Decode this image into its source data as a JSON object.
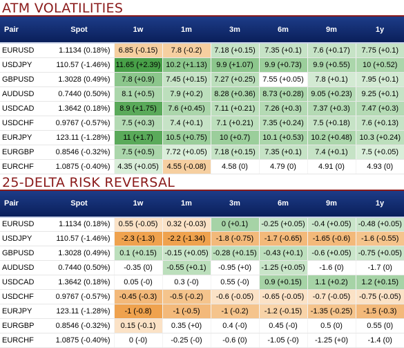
{
  "columns": [
    "Pair",
    "Spot",
    "1w",
    "1m",
    "3m",
    "6m",
    "9m",
    "1y"
  ],
  "sections": [
    {
      "title": "ATM VOLATILITIES",
      "rows": [
        {
          "pair": "EURUSD",
          "spot": "1.1134 (0.18%)",
          "cells": [
            {
              "text": "6.85 (-0.15)",
              "color": "#f6cfa0"
            },
            {
              "text": "7.8 (-0.2)",
              "color": "#f6cfa0"
            },
            {
              "text": "7.18 (+0.15)",
              "color": "#c6e3c6"
            },
            {
              "text": "7.35 (+0.1)",
              "color": "#c6e3c6"
            },
            {
              "text": "7.6 (+0.17)",
              "color": "#c6e3c6"
            },
            {
              "text": "7.75 (+0.1)",
              "color": "#c6e3c6"
            }
          ]
        },
        {
          "pair": "USDJPY",
          "spot": "110.57 (-1.46%)",
          "cells": [
            {
              "text": "11.65 (+2.39)",
              "color": "#48a048"
            },
            {
              "text": "10.2 (+1.13)",
              "color": "#8cc68c"
            },
            {
              "text": "9.9 (+1.07)",
              "color": "#8cc68c"
            },
            {
              "text": "9.9 (+0.73)",
              "color": "#9bce9b"
            },
            {
              "text": "9.9 (+0.55)",
              "color": "#abd6ab"
            },
            {
              "text": "10 (+0.52)",
              "color": "#abd6ab"
            }
          ]
        },
        {
          "pair": "GBPUSD",
          "spot": "1.3028 (0.49%)",
          "cells": [
            {
              "text": "7.8 (+0.9)",
              "color": "#8cc68c"
            },
            {
              "text": "7.45 (+0.15)",
              "color": "#c6e3c6"
            },
            {
              "text": "7.27 (+0.25)",
              "color": "#bcdfbc"
            },
            {
              "text": "7.55 (+0.05)",
              "color": "#ffffff"
            },
            {
              "text": "7.8 (+0.1)",
              "color": "#d3ead3"
            },
            {
              "text": "7.95 (+0.1)",
              "color": "#d3ead3"
            }
          ]
        },
        {
          "pair": "AUDUSD",
          "spot": "0.7440 (0.50%)",
          "cells": [
            {
              "text": "8.1 (+0.5)",
              "color": "#abd6ab"
            },
            {
              "text": "7.9 (+0.2)",
              "color": "#bcdfbc"
            },
            {
              "text": "8.28 (+0.36)",
              "color": "#abd6ab"
            },
            {
              "text": "8.73 (+0.28)",
              "color": "#abd6ab"
            },
            {
              "text": "9.05 (+0.23)",
              "color": "#b4dab4"
            },
            {
              "text": "9.25 (+0.1)",
              "color": "#c6e3c6"
            }
          ]
        },
        {
          "pair": "USDCAD",
          "spot": "1.3642 (0.18%)",
          "cells": [
            {
              "text": "8.9 (+1.75)",
              "color": "#5aaa5a"
            },
            {
              "text": "7.6 (+0.45)",
              "color": "#abd6ab"
            },
            {
              "text": "7.11 (+0.21)",
              "color": "#bcdfbc"
            },
            {
              "text": "7.26 (+0.3)",
              "color": "#b4dab4"
            },
            {
              "text": "7.37 (+0.3)",
              "color": "#b4dab4"
            },
            {
              "text": "7.47 (+0.3)",
              "color": "#b4dab4"
            }
          ]
        },
        {
          "pair": "USDCHF",
          "spot": "0.9767 (-0.57%)",
          "cells": [
            {
              "text": "7.5 (+0.3)",
              "color": "#b4dab4"
            },
            {
              "text": "7.4 (+0.1)",
              "color": "#c6e3c6"
            },
            {
              "text": "7.1 (+0.21)",
              "color": "#bcdfbc"
            },
            {
              "text": "7.35 (+0.24)",
              "color": "#bcdfbc"
            },
            {
              "text": "7.5 (+0.18)",
              "color": "#c6e3c6"
            },
            {
              "text": "7.6 (+0.13)",
              "color": "#c6e3c6"
            }
          ]
        },
        {
          "pair": "EURJPY",
          "spot": "123.11 (-1.28%)",
          "cells": [
            {
              "text": "11 (+1.7)",
              "color": "#5aaa5a"
            },
            {
              "text": "10.5 (+0.75)",
              "color": "#9bce9b"
            },
            {
              "text": "10 (+0.7)",
              "color": "#9bce9b"
            },
            {
              "text": "10.1 (+0.53)",
              "color": "#abd6ab"
            },
            {
              "text": "10.2 (+0.48)",
              "color": "#abd6ab"
            },
            {
              "text": "10.3 (+0.24)",
              "color": "#bcdfbc"
            }
          ]
        },
        {
          "pair": "EURGBP",
          "spot": "0.8546 (-0.32%)",
          "cells": [
            {
              "text": "7.5 (+0.5)",
              "color": "#abd6ab"
            },
            {
              "text": "7.72 (+0.05)",
              "color": "#d9eed9"
            },
            {
              "text": "7.18 (+0.15)",
              "color": "#c6e3c6"
            },
            {
              "text": "7.35 (+0.1)",
              "color": "#c6e3c6"
            },
            {
              "text": "7.4 (+0.1)",
              "color": "#c6e3c6"
            },
            {
              "text": "7.5 (+0.05)",
              "color": "#d9eed9"
            }
          ]
        },
        {
          "pair": "EURCHF",
          "spot": "1.0875 (-0.40%)",
          "cells": [
            {
              "text": "4.35 (+0.05)",
              "color": "#d9eed9"
            },
            {
              "text": "4.55 (-0.08)",
              "color": "#f6cfa0"
            },
            {
              "text": "4.58 (0)",
              "color": "#ffffff"
            },
            {
              "text": "4.79 (0)",
              "color": "#ffffff"
            },
            {
              "text": "4.91 (0)",
              "color": "#ffffff"
            },
            {
              "text": "4.93 (0)",
              "color": "#ffffff"
            }
          ]
        }
      ]
    },
    {
      "title": "25-DELTA RISK REVERSAL",
      "rows": [
        {
          "pair": "EURUSD",
          "spot": "1.1134 (0.18%)",
          "cells": [
            {
              "text": "0.55 (-0.05)",
              "color": "#fbe2c6"
            },
            {
              "text": "0.32 (-0.03)",
              "color": "#fbe2c6"
            },
            {
              "text": "0 (+0.1)",
              "color": "#a6d3a6"
            },
            {
              "text": "-0.25 (+0.05)",
              "color": "#c9e5c9"
            },
            {
              "text": "-0.4 (+0.05)",
              "color": "#c9e5c9"
            },
            {
              "text": "-0.48 (+0.05)",
              "color": "#c9e5c9"
            }
          ]
        },
        {
          "pair": "USDJPY",
          "spot": "110.57 (-1.46%)",
          "cells": [
            {
              "text": "-2.3 (-1.3)",
              "color": "#efa24e"
            },
            {
              "text": "-2.2 (-1.34)",
              "color": "#efa24e"
            },
            {
              "text": "-1.8 (-0.75)",
              "color": "#f3b97a"
            },
            {
              "text": "-1.7 (-0.65)",
              "color": "#f3b97a"
            },
            {
              "text": "-1.65 (-0.6)",
              "color": "#f3b97a"
            },
            {
              "text": "-1.6 (-0.55)",
              "color": "#f5c48c"
            }
          ]
        },
        {
          "pair": "GBPUSD",
          "spot": "1.3028 (0.49%)",
          "cells": [
            {
              "text": "0.1 (+0.15)",
              "color": "#bcdfbc"
            },
            {
              "text": "-0.15 (+0.05)",
              "color": "#c9e5c9"
            },
            {
              "text": "-0.28 (+0.15)",
              "color": "#bcdfbc"
            },
            {
              "text": "-0.43 (+0.1)",
              "color": "#bcdfbc"
            },
            {
              "text": "-0.6 (+0.05)",
              "color": "#c9e5c9"
            },
            {
              "text": "-0.75 (+0.05)",
              "color": "#c9e5c9"
            }
          ]
        },
        {
          "pair": "AUDUSD",
          "spot": "0.7440 (0.50%)",
          "cells": [
            {
              "text": "-0.35 (0)",
              "color": "#ffffff"
            },
            {
              "text": "-0.55 (+0.1)",
              "color": "#bcdfbc"
            },
            {
              "text": "-0.95 (+0)",
              "color": "#ffffff"
            },
            {
              "text": "-1.25 (+0.05)",
              "color": "#c9e5c9"
            },
            {
              "text": "-1.6 (0)",
              "color": "#ffffff"
            },
            {
              "text": "-1.7 (0)",
              "color": "#ffffff"
            }
          ]
        },
        {
          "pair": "USDCAD",
          "spot": "1.3642 (0.18%)",
          "cells": [
            {
              "text": "0.05 (-0)",
              "color": "#ffffff"
            },
            {
              "text": "0.3 (-0)",
              "color": "#ffffff"
            },
            {
              "text": "0.55 (-0)",
              "color": "#ffffff"
            },
            {
              "text": "0.9 (+0.15)",
              "color": "#a6d3a6"
            },
            {
              "text": "1.1 (+0.2)",
              "color": "#a6d3a6"
            },
            {
              "text": "1.2 (+0.15)",
              "color": "#a6d3a6"
            }
          ]
        },
        {
          "pair": "USDCHF",
          "spot": "0.9767 (-0.57%)",
          "cells": [
            {
              "text": "-0.45 (-0.3)",
              "color": "#f3b97a"
            },
            {
              "text": "-0.5 (-0.2)",
              "color": "#f5c48c"
            },
            {
              "text": "-0.6 (-0.05)",
              "color": "#fbe2c6"
            },
            {
              "text": "-0.65 (-0.05)",
              "color": "#fbe2c6"
            },
            {
              "text": "-0.7 (-0.05)",
              "color": "#fbe2c6"
            },
            {
              "text": "-0.75 (-0.05)",
              "color": "#fbe2c6"
            }
          ]
        },
        {
          "pair": "EURJPY",
          "spot": "123.11 (-1.28%)",
          "cells": [
            {
              "text": "-1 (-0.8)",
              "color": "#efa24e"
            },
            {
              "text": "-1 (-0.5)",
              "color": "#f3b97a"
            },
            {
              "text": "-1 (-0.2)",
              "color": "#f5c48c"
            },
            {
              "text": "-1.2 (-0.15)",
              "color": "#f8d3a8"
            },
            {
              "text": "-1.35 (-0.25)",
              "color": "#f5c48c"
            },
            {
              "text": "-1.5 (-0.3)",
              "color": "#f3b97a"
            }
          ]
        },
        {
          "pair": "EURGBP",
          "spot": "0.8546 (-0.32%)",
          "cells": [
            {
              "text": "0.15 (-0.1)",
              "color": "#fbe2c6"
            },
            {
              "text": "0.35 (+0)",
              "color": "#ffffff"
            },
            {
              "text": "0.4 (-0)",
              "color": "#ffffff"
            },
            {
              "text": "0.45 (-0)",
              "color": "#ffffff"
            },
            {
              "text": "0.5 (0)",
              "color": "#ffffff"
            },
            {
              "text": "0.55 (0)",
              "color": "#ffffff"
            }
          ]
        },
        {
          "pair": "EURCHF",
          "spot": "1.0875 (-0.40%)",
          "cells": [
            {
              "text": "0 (-0)",
              "color": "#ffffff"
            },
            {
              "text": "-0.25 (-0)",
              "color": "#ffffff"
            },
            {
              "text": "-0.6 (0)",
              "color": "#ffffff"
            },
            {
              "text": "-1.05 (-0)",
              "color": "#ffffff"
            },
            {
              "text": "-1.25 (+0)",
              "color": "#ffffff"
            },
            {
              "text": "-1.4 (0)",
              "color": "#ffffff"
            }
          ]
        }
      ]
    }
  ]
}
